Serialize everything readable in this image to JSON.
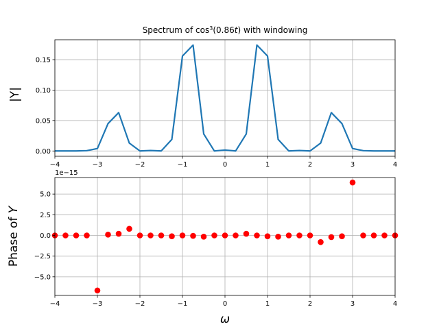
{
  "chart_data": [
    {
      "type": "line",
      "title_prefix": "Spectrum of cos",
      "title_sup": "3",
      "title_mid": "(0.86",
      "title_var": "t",
      "title_suffix": ") with windowing",
      "ylabel": "|Y|",
      "xlabel": "",
      "xlim": [
        -4,
        4
      ],
      "ylim": [
        -0.0087,
        0.1827
      ],
      "grid": true,
      "x_ticks": [
        -4,
        -3,
        -2,
        -1,
        0,
        1,
        2,
        3,
        4
      ],
      "x_tick_labels": [
        "−4",
        "−3",
        "−2",
        "−1",
        "0",
        "1",
        "2",
        "3",
        "4"
      ],
      "y_ticks": [
        0.0,
        0.05,
        0.1,
        0.15
      ],
      "y_tick_labels": [
        "0.00",
        "0.05",
        "0.10",
        "0.15"
      ],
      "color": "#1f77b4",
      "x": [
        -4.0,
        -3.75,
        -3.5,
        -3.25,
        -3.0,
        -2.75,
        -2.5,
        -2.25,
        -2.0,
        -1.75,
        -1.5,
        -1.25,
        -1.0,
        -0.75,
        -0.5,
        -0.25,
        0.0,
        0.25,
        0.5,
        0.75,
        1.0,
        1.25,
        1.5,
        1.75,
        2.0,
        2.25,
        2.5,
        2.75,
        3.0,
        3.25,
        3.5,
        3.75,
        4.0
      ],
      "y": [
        0.0,
        0.0,
        0.0,
        0.0005,
        0.004,
        0.045,
        0.063,
        0.013,
        0.0,
        0.0007,
        0.0,
        0.019,
        0.156,
        0.174,
        0.028,
        0.0,
        0.0015,
        0.0,
        0.028,
        0.174,
        0.156,
        0.019,
        0.0,
        0.0007,
        0.0,
        0.013,
        0.063,
        0.045,
        0.004,
        0.0005,
        0.0,
        0.0,
        0.0
      ]
    },
    {
      "type": "scatter",
      "ylabel_prefix": "Phase of ",
      "ylabel_var": "Y",
      "xlabel": "ω",
      "offset_text": "1e−15",
      "xlim": [
        -4,
        4
      ],
      "ylim": [
        -7.25,
        7.0
      ],
      "grid": true,
      "x_ticks": [
        -4,
        -3,
        -2,
        -1,
        0,
        1,
        2,
        3,
        4
      ],
      "x_tick_labels": [
        "−4",
        "−3",
        "−2",
        "−1",
        "0",
        "1",
        "2",
        "3",
        "4"
      ],
      "y_ticks": [
        -5.0,
        -2.5,
        0.0,
        2.5,
        5.0
      ],
      "y_tick_labels": [
        "−5.0",
        "−2.5",
        "0.0",
        "2.5",
        "5.0"
      ],
      "color": "#ff0000",
      "x": [
        -4.0,
        -3.75,
        -3.5,
        -3.25,
        -3.0,
        -2.75,
        -2.5,
        -2.25,
        -2.0,
        -1.75,
        -1.5,
        -1.25,
        -1.0,
        -0.75,
        -0.5,
        -0.25,
        0.0,
        0.25,
        0.5,
        0.75,
        1.0,
        1.25,
        1.5,
        1.75,
        2.0,
        2.25,
        2.5,
        2.75,
        3.0,
        3.25,
        3.5,
        3.75,
        4.0
      ],
      "y": [
        0.0,
        0.0,
        0.0,
        0.0,
        -6.65,
        0.1,
        0.2,
        0.8,
        0.0,
        0.0,
        0.0,
        -0.1,
        0.0,
        -0.05,
        -0.15,
        0.0,
        0.0,
        0.0,
        0.2,
        0.0,
        -0.1,
        -0.15,
        0.0,
        0.0,
        0.0,
        -0.8,
        -0.2,
        -0.1,
        6.4,
        0.0,
        0.0,
        0.0,
        0.0
      ]
    }
  ]
}
